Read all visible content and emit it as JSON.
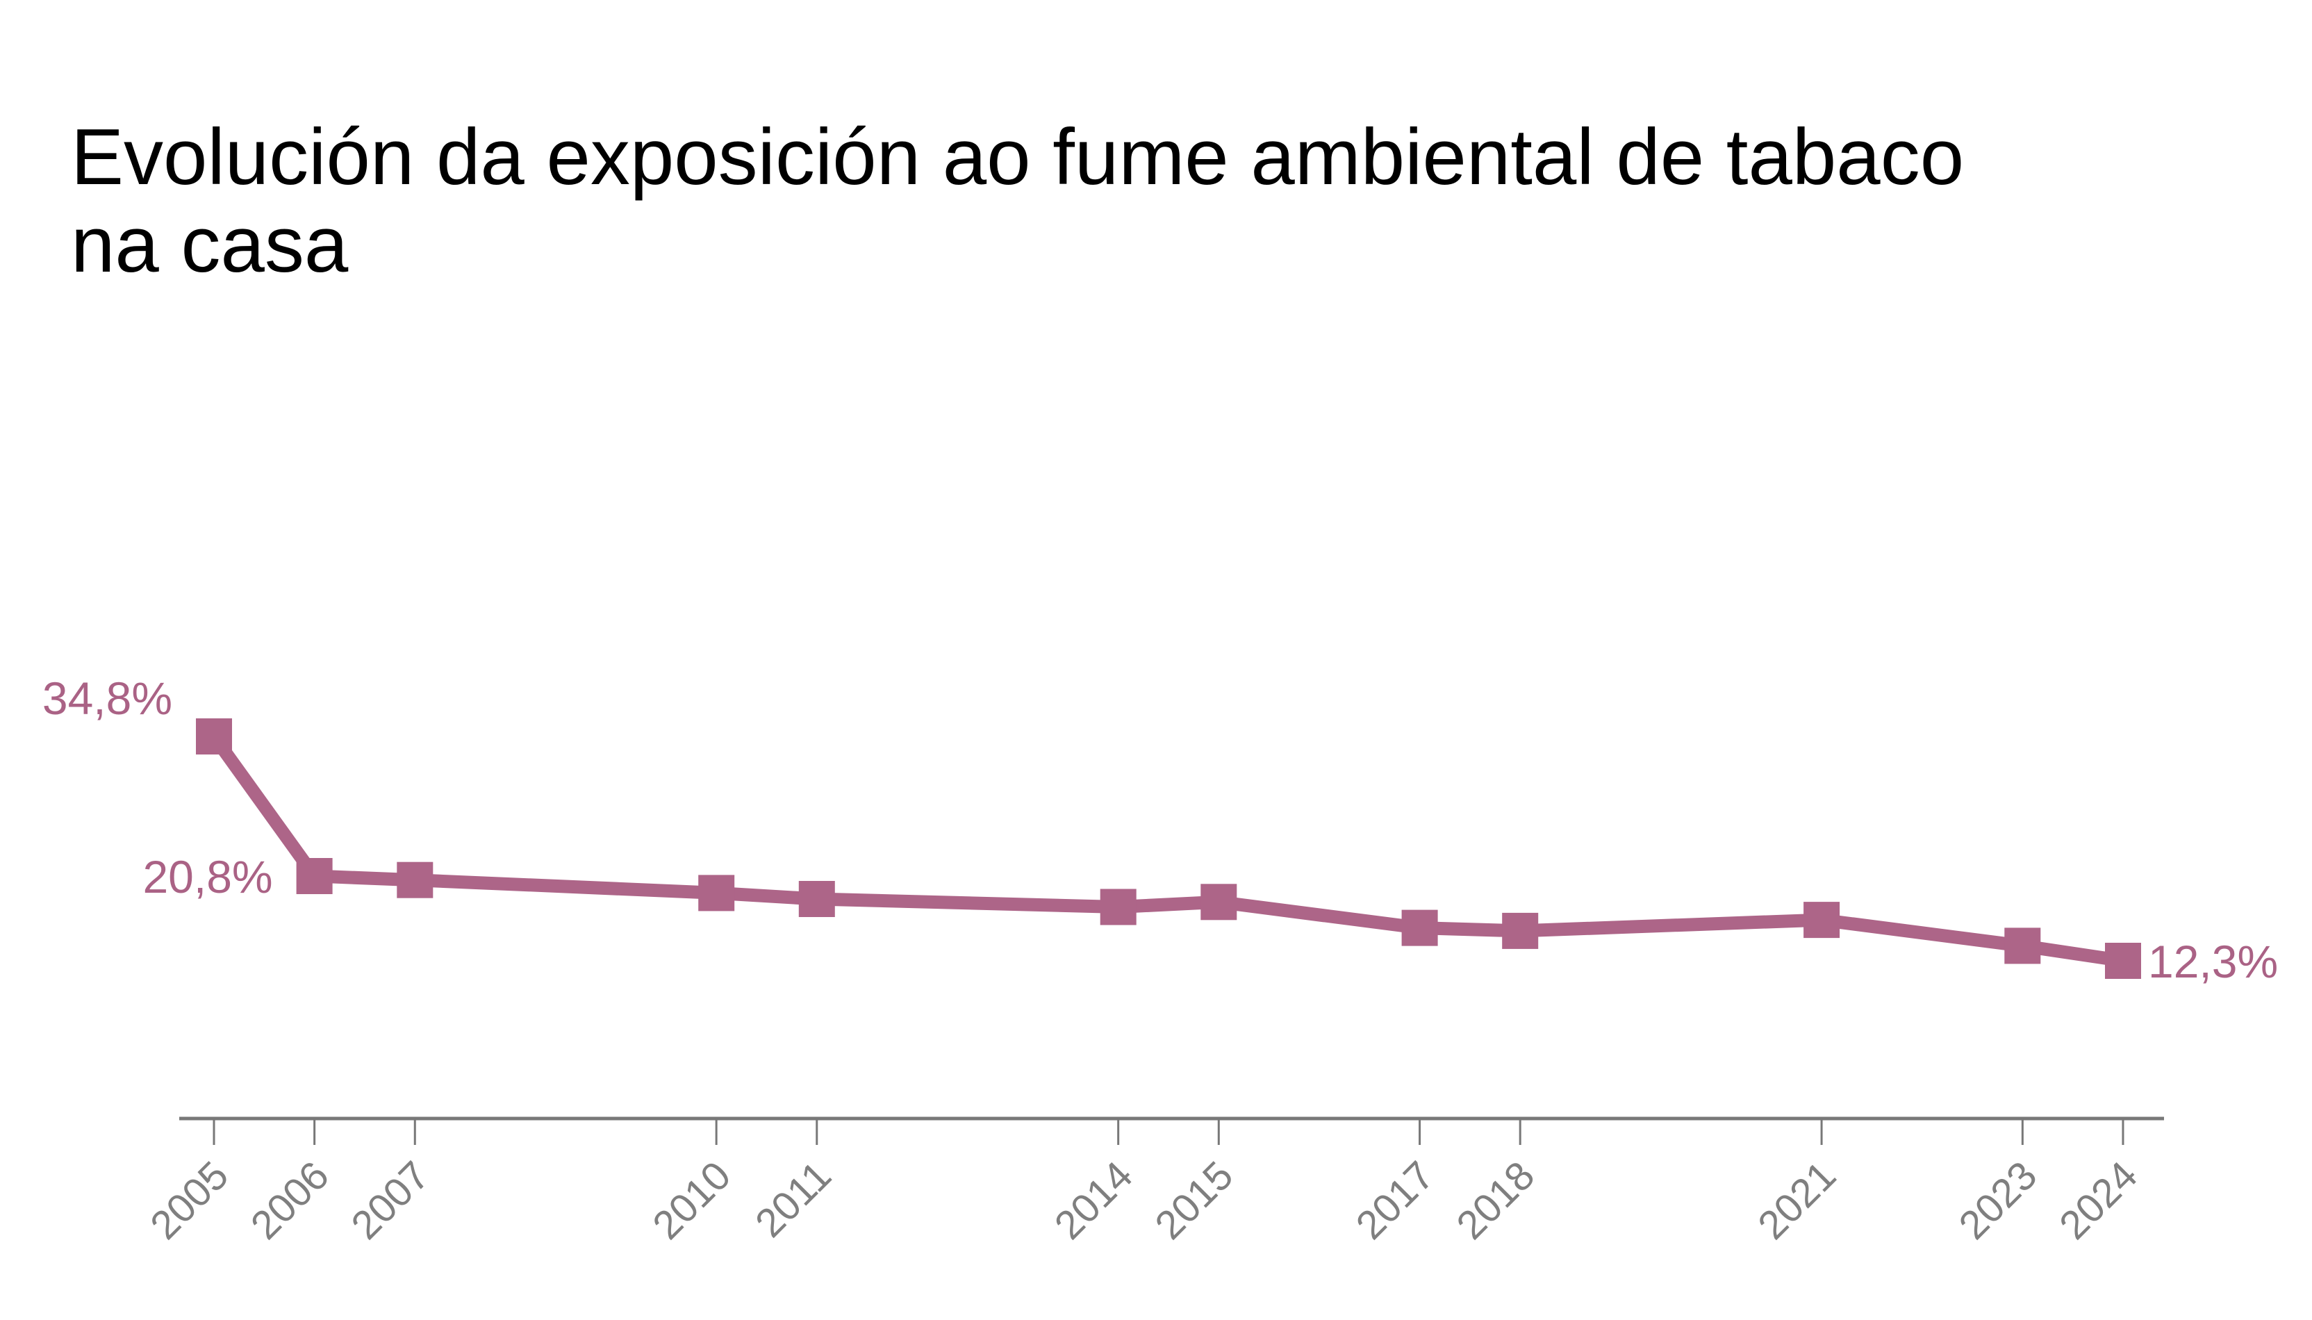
{
  "title": "Evolución da exposición ao fume ambiental de tabaco na casa",
  "title_lines": [
    "Evolución da exposición ao fume ambiental de tabaco",
    "na casa"
  ],
  "chart_data": {
    "type": "line",
    "title": "Evolución da exposición ao fume ambiental de tabaco na casa",
    "xlabel": "",
    "ylabel": "",
    "unit": "%",
    "x": [
      2005,
      2006,
      2007,
      2010,
      2011,
      2014,
      2015,
      2017,
      2018,
      2021,
      2023,
      2024
    ],
    "values": [
      34.8,
      20.8,
      20.4,
      19.1,
      18.5,
      17.7,
      18.2,
      15.6,
      15.3,
      16.4,
      13.8,
      12.3
    ],
    "x_tick_labels": [
      "2005",
      "2006",
      "2007",
      "2010",
      "2011",
      "2014",
      "2015",
      "2017",
      "2018",
      "2021",
      "2023",
      "2024"
    ],
    "point_labels": [
      {
        "year": 2005,
        "text": "34,8%",
        "side": "left",
        "valign": "above"
      },
      {
        "year": 2006,
        "text": "20,8%",
        "side": "left",
        "valign": "middle"
      },
      {
        "year": 2024,
        "text": "12,3%",
        "side": "right",
        "valign": "middle"
      }
    ],
    "marker": "square",
    "grid": false,
    "legend": "none",
    "x_axis_linear_in_years": true,
    "ylim_implied": [
      0,
      40
    ],
    "colors": {
      "series": "#ad6588",
      "value_labels": "#aa6285",
      "axis": "#787878",
      "tick_labels": "#7f7f7f",
      "title": "#000000",
      "background": "#ffffff"
    }
  }
}
